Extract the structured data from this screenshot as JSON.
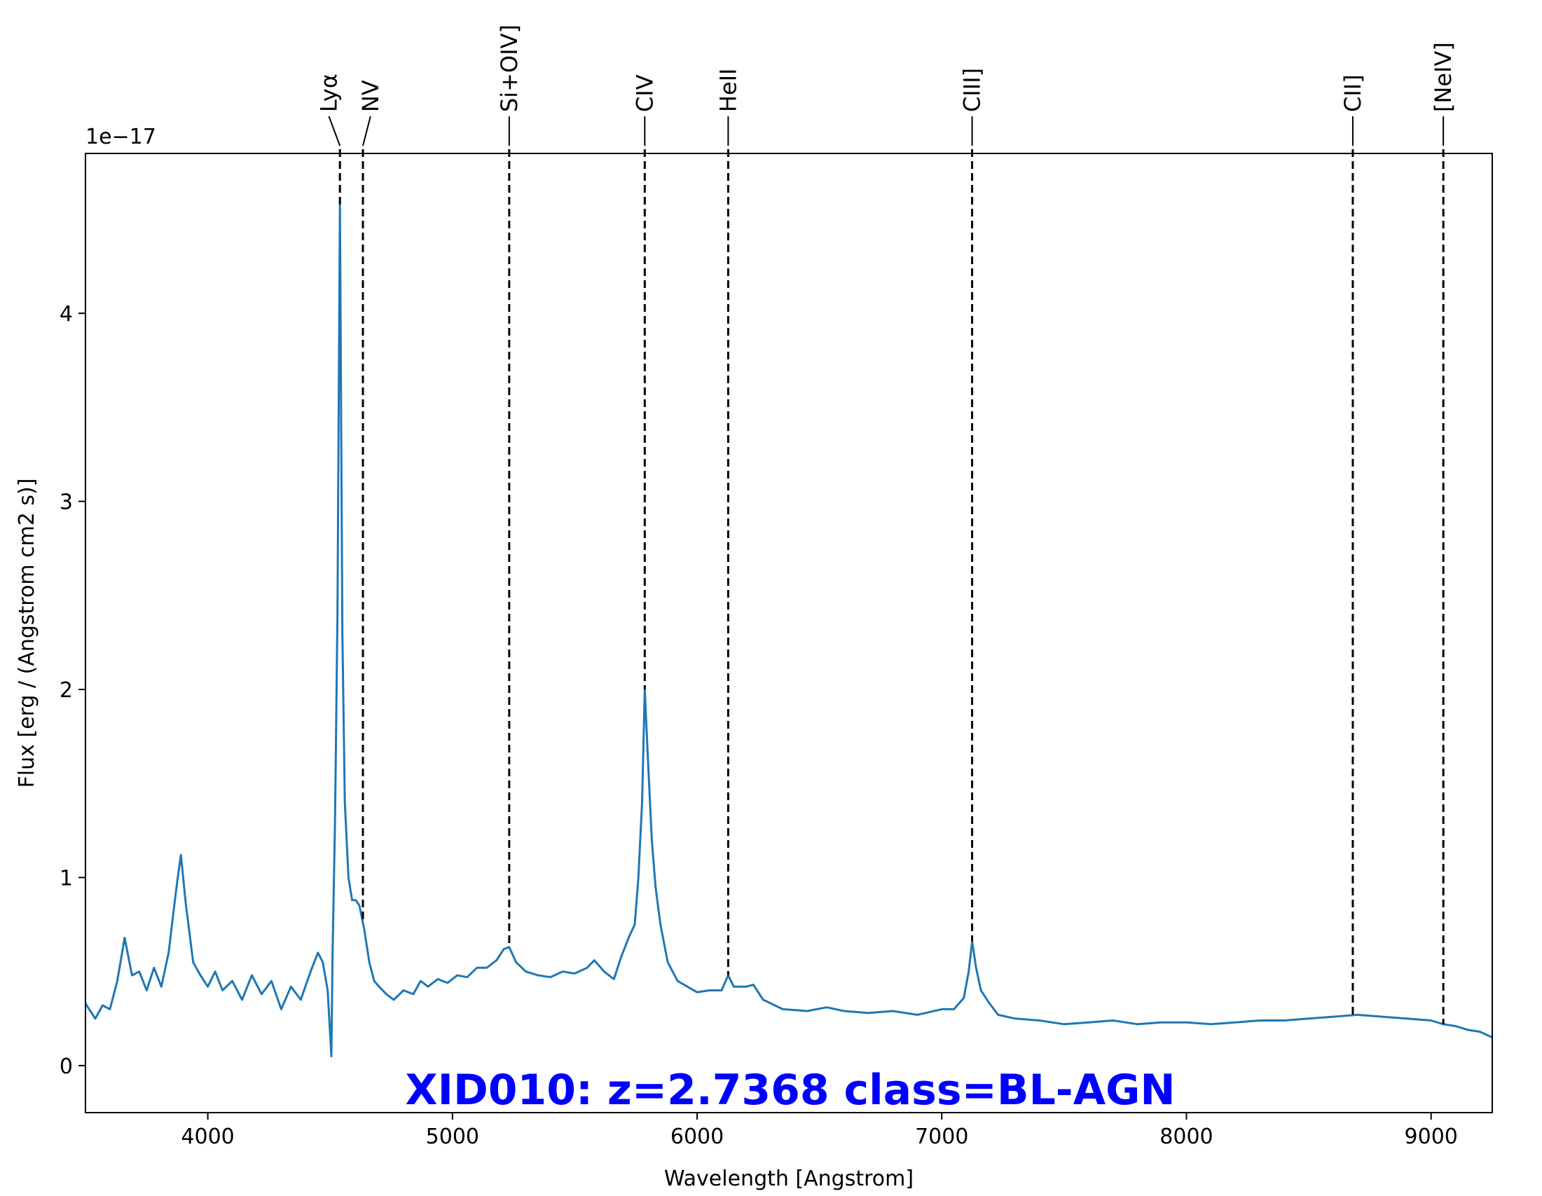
{
  "chart_data": {
    "type": "line",
    "title": "",
    "xlabel": "Wavelength [Angstrom]",
    "ylabel": "Flux [erg / (Angstrom cm2 s)]",
    "y_offset_text": "1e−17",
    "xlim": [
      3500,
      9250
    ],
    "ylim": [
      -0.25,
      4.85
    ],
    "x_ticks": [
      4000,
      5000,
      6000,
      7000,
      8000,
      9000
    ],
    "y_ticks": [
      0,
      1,
      2,
      3,
      4
    ],
    "grid": false,
    "line_color": "#1f77b4",
    "annotation": {
      "text": "XID010: z=2.7368 class=BL-AGN",
      "color": "#0000ff"
    },
    "emission_lines": [
      {
        "label": "Lyα",
        "x": 4540,
        "label_x": 4495
      },
      {
        "label": "NV",
        "x": 4634,
        "label_x": 4665
      },
      {
        "label": "Si+OIV]",
        "x": 5232,
        "label_x": 5232
      },
      {
        "label": "CIV",
        "x": 5786,
        "label_x": 5786
      },
      {
        "label": "HeII",
        "x": 6127,
        "label_x": 6127
      },
      {
        "label": "CIII]",
        "x": 7124,
        "label_x": 7124
      },
      {
        "label": "CII]",
        "x": 8680,
        "label_x": 8680
      },
      {
        "label": "[NeIV]",
        "x": 9050,
        "label_x": 9050
      }
    ],
    "series": [
      {
        "x": [
          3500,
          3540,
          3570,
          3600,
          3630,
          3660,
          3690,
          3720,
          3750,
          3780,
          3810,
          3840,
          3860,
          3875,
          3890,
          3910,
          3940,
          3970,
          4000,
          4030,
          4060,
          4100,
          4140,
          4180,
          4220,
          4260,
          4300,
          4340,
          4380,
          4420,
          4450,
          4470,
          4490,
          4505,
          4510,
          4520,
          4530,
          4540,
          4550,
          4560,
          4575,
          4590,
          4605,
          4620,
          4640,
          4660,
          4680,
          4700,
          4730,
          4760,
          4800,
          4840,
          4870,
          4900,
          4940,
          4980,
          5020,
          5060,
          5100,
          5140,
          5180,
          5210,
          5232,
          5260,
          5300,
          5350,
          5400,
          5450,
          5500,
          5550,
          5580,
          5620,
          5660,
          5690,
          5720,
          5745,
          5760,
          5775,
          5786,
          5800,
          5815,
          5830,
          5850,
          5880,
          5920,
          5960,
          6000,
          6050,
          6100,
          6127,
          6150,
          6200,
          6230,
          6270,
          6350,
          6450,
          6530,
          6600,
          6700,
          6800,
          6900,
          7000,
          7050,
          7090,
          7110,
          7124,
          7140,
          7160,
          7190,
          7230,
          7300,
          7400,
          7500,
          7600,
          7700,
          7800,
          7900,
          8000,
          8100,
          8200,
          8300,
          8400,
          8500,
          8600,
          8700,
          8800,
          8900,
          9000,
          9050,
          9100,
          9150,
          9200,
          9250
        ],
        "y": [
          0.33,
          0.25,
          0.32,
          0.3,
          0.45,
          0.68,
          0.48,
          0.5,
          0.4,
          0.52,
          0.42,
          0.6,
          0.82,
          0.98,
          1.12,
          0.86,
          0.55,
          0.48,
          0.42,
          0.5,
          0.4,
          0.45,
          0.35,
          0.48,
          0.38,
          0.45,
          0.3,
          0.42,
          0.35,
          0.5,
          0.6,
          0.55,
          0.4,
          0.05,
          0.6,
          1.3,
          2.4,
          4.58,
          2.3,
          1.4,
          1.0,
          0.88,
          0.88,
          0.85,
          0.72,
          0.55,
          0.45,
          0.42,
          0.38,
          0.35,
          0.4,
          0.38,
          0.45,
          0.42,
          0.46,
          0.44,
          0.48,
          0.47,
          0.52,
          0.52,
          0.56,
          0.62,
          0.63,
          0.55,
          0.5,
          0.48,
          0.47,
          0.5,
          0.49,
          0.52,
          0.56,
          0.5,
          0.46,
          0.58,
          0.68,
          0.75,
          1.0,
          1.4,
          2.0,
          1.6,
          1.2,
          0.95,
          0.75,
          0.55,
          0.45,
          0.42,
          0.39,
          0.4,
          0.4,
          0.48,
          0.42,
          0.42,
          0.43,
          0.35,
          0.3,
          0.29,
          0.31,
          0.29,
          0.28,
          0.29,
          0.27,
          0.3,
          0.3,
          0.36,
          0.5,
          0.66,
          0.52,
          0.4,
          0.34,
          0.27,
          0.25,
          0.24,
          0.22,
          0.23,
          0.24,
          0.22,
          0.23,
          0.23,
          0.22,
          0.23,
          0.24,
          0.24,
          0.25,
          0.26,
          0.27,
          0.26,
          0.25,
          0.24,
          0.22,
          0.21,
          0.19,
          0.18,
          0.15
        ]
      }
    ]
  }
}
